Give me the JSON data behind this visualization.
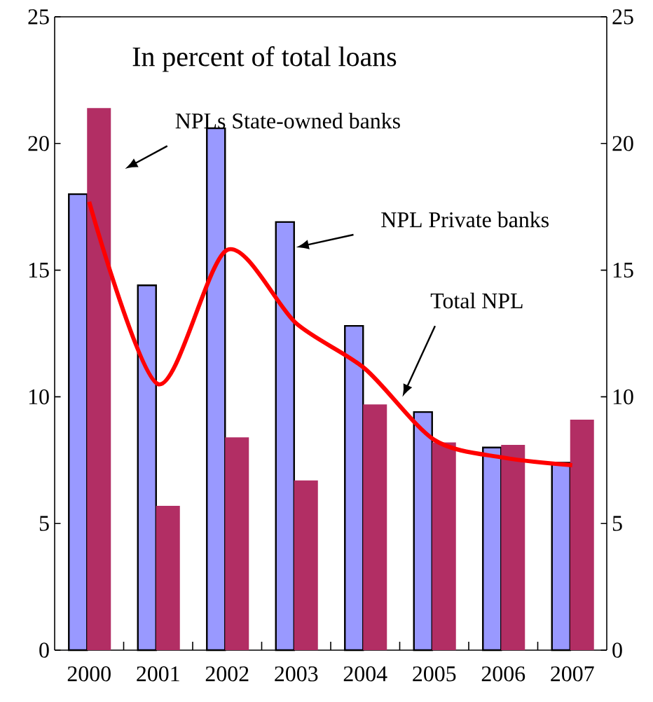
{
  "chart_data": {
    "type": "bar",
    "title": "In percent of total  loans",
    "categories": [
      "2000",
      "2001",
      "2002",
      "2003",
      "2004",
      "2005",
      "2006",
      "2007"
    ],
    "series": [
      {
        "color": "#9999ff",
        "values": [
          18.0,
          14.4,
          20.6,
          16.9,
          12.8,
          9.4,
          8.0,
          7.4
        ]
      },
      {
        "color": "#b22e64",
        "values": [
          21.4,
          5.7,
          8.4,
          6.7,
          9.7,
          8.2,
          8.1,
          9.1
        ]
      },
      {
        "type": "line",
        "color": "#ff0000",
        "values": [
          17.7,
          10.5,
          15.8,
          12.9,
          11.1,
          8.3,
          7.6,
          7.3
        ]
      }
    ],
    "ylim": [
      0,
      25
    ],
    "yticks": [
      0,
      5,
      10,
      15,
      20,
      25
    ],
    "y2lim": [
      0,
      25
    ],
    "y2ticks": [
      0,
      5,
      10,
      15,
      20,
      25
    ],
    "annotations": [
      "NPLs State-owned banks",
      {
        "text": "NPL Private banks",
        "x": "2003",
        "y": 15.9
      },
      "Total NPL"
    ]
  }
}
